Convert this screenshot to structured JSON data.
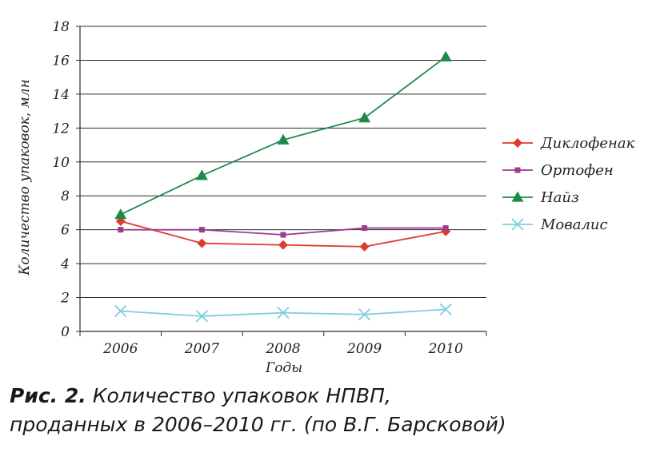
{
  "chart_data": {
    "type": "line",
    "x": [
      2006,
      2007,
      2008,
      2009,
      2010
    ],
    "xlabel": "Годы",
    "ylabel": "Количество упаковок, млн",
    "ylim": [
      0,
      18
    ],
    "yticks": [
      0,
      2,
      4,
      6,
      8,
      10,
      12,
      14,
      16,
      18
    ],
    "grid": "horizontal",
    "legend_position": "right",
    "series": [
      {
        "name": "Диклофенак",
        "color": "#e03a2e",
        "marker": "diamond",
        "values": [
          6.5,
          5.2,
          5.1,
          5.0,
          5.9
        ]
      },
      {
        "name": "Ортофен",
        "color": "#9b3b8a",
        "marker": "square",
        "values": [
          6.0,
          6.0,
          5.7,
          6.1,
          6.1
        ]
      },
      {
        "name": "Найз",
        "color": "#1e8a4a",
        "marker": "triangle",
        "values": [
          6.9,
          9.2,
          11.3,
          12.6,
          16.2
        ]
      },
      {
        "name": "Мовалис",
        "color": "#7dcde0",
        "marker": "x",
        "values": [
          1.2,
          0.9,
          1.1,
          1.0,
          1.3
        ]
      }
    ]
  },
  "caption": {
    "label": "Рис. 2.",
    "line1": "Количество упаковок НПВП,",
    "line2": "проданных в 2006–2010 гг. (по В.Г. Барсковой)"
  }
}
